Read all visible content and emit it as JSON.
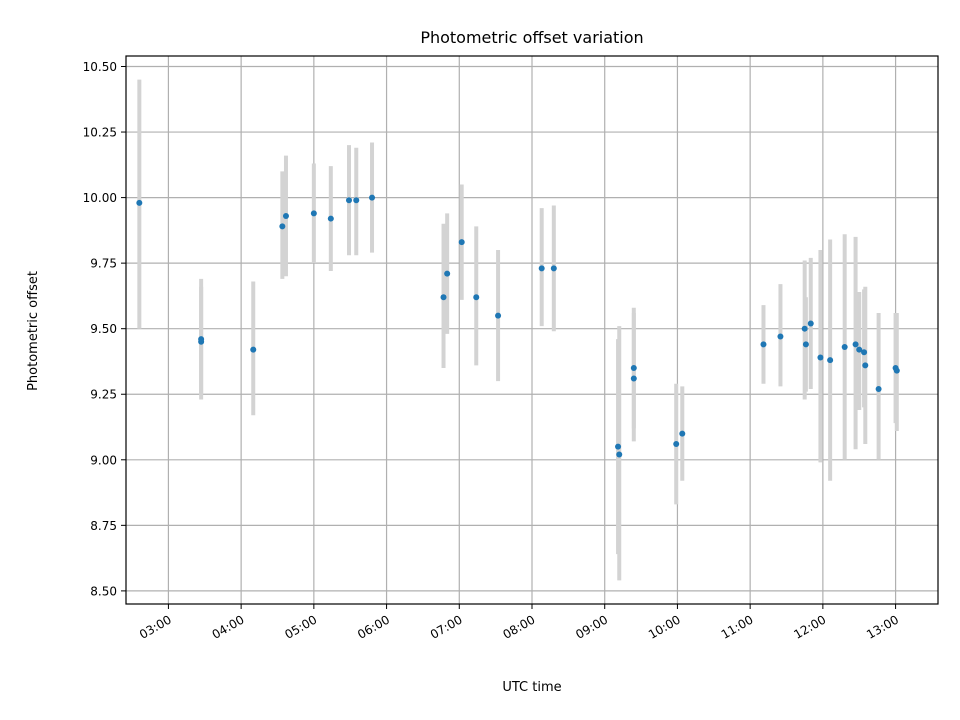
{
  "chart_data": {
    "type": "scatter",
    "title": "Photometric offset variation",
    "xlabel": "UTC time",
    "ylabel": "Photometric offset",
    "xlim": [
      "02:25",
      "13:35"
    ],
    "ylim": [
      8.45,
      10.54
    ],
    "grid": true,
    "legend": "none",
    "x_ticks": [
      "03:00",
      "04:00",
      "05:00",
      "06:00",
      "07:00",
      "08:00",
      "09:00",
      "10:00",
      "11:00",
      "12:00",
      "13:00"
    ],
    "y_ticks": [
      "8.50",
      "8.75",
      "9.00",
      "9.25",
      "9.50",
      "9.75",
      "10.00",
      "10.25",
      "10.50"
    ],
    "colors": {
      "point": "#1f77b4",
      "errorbar": "#d3d3d3",
      "grid": "#b0b0b0"
    },
    "points": [
      {
        "x": "02:36",
        "y": 9.98,
        "ylow": 9.5,
        "yhigh": 10.45
      },
      {
        "x": "03:27",
        "y": 9.46,
        "ylow": 9.23,
        "yhigh": 9.69
      },
      {
        "x": "03:27",
        "y": 9.45,
        "ylow": 9.25,
        "yhigh": 9.66
      },
      {
        "x": "04:10",
        "y": 9.42,
        "ylow": 9.17,
        "yhigh": 9.68
      },
      {
        "x": "04:34",
        "y": 9.89,
        "ylow": 9.69,
        "yhigh": 10.1
      },
      {
        "x": "04:37",
        "y": 9.93,
        "ylow": 9.7,
        "yhigh": 10.16
      },
      {
        "x": "05:00",
        "y": 9.94,
        "ylow": 9.75,
        "yhigh": 10.13
      },
      {
        "x": "05:14",
        "y": 9.92,
        "ylow": 9.72,
        "yhigh": 10.12
      },
      {
        "x": "05:29",
        "y": 9.99,
        "ylow": 9.78,
        "yhigh": 10.2
      },
      {
        "x": "05:35",
        "y": 9.99,
        "ylow": 9.78,
        "yhigh": 10.19
      },
      {
        "x": "05:48",
        "y": 10.0,
        "ylow": 9.79,
        "yhigh": 10.21
      },
      {
        "x": "06:47",
        "y": 9.62,
        "ylow": 9.35,
        "yhigh": 9.9
      },
      {
        "x": "06:50",
        "y": 9.71,
        "ylow": 9.48,
        "yhigh": 9.94
      },
      {
        "x": "07:02",
        "y": 9.83,
        "ylow": 9.61,
        "yhigh": 10.05
      },
      {
        "x": "07:14",
        "y": 9.62,
        "ylow": 9.36,
        "yhigh": 9.89
      },
      {
        "x": "07:32",
        "y": 9.55,
        "ylow": 9.3,
        "yhigh": 9.8
      },
      {
        "x": "08:08",
        "y": 9.73,
        "ylow": 9.51,
        "yhigh": 9.96
      },
      {
        "x": "08:18",
        "y": 9.73,
        "ylow": 9.49,
        "yhigh": 9.97
      },
      {
        "x": "09:11",
        "y": 9.05,
        "ylow": 8.64,
        "yhigh": 9.46
      },
      {
        "x": "09:12",
        "y": 9.02,
        "ylow": 8.54,
        "yhigh": 9.51
      },
      {
        "x": "09:24",
        "y": 9.35,
        "ylow": 9.12,
        "yhigh": 9.58
      },
      {
        "x": "09:24",
        "y": 9.31,
        "ylow": 9.07,
        "yhigh": 9.56
      },
      {
        "x": "09:59",
        "y": 9.06,
        "ylow": 8.83,
        "yhigh": 9.29
      },
      {
        "x": "10:04",
        "y": 9.1,
        "ylow": 8.92,
        "yhigh": 9.28
      },
      {
        "x": "11:11",
        "y": 9.44,
        "ylow": 9.29,
        "yhigh": 9.59
      },
      {
        "x": "11:25",
        "y": 9.47,
        "ylow": 9.28,
        "yhigh": 9.67
      },
      {
        "x": "11:45",
        "y": 9.5,
        "ylow": 9.23,
        "yhigh": 9.76
      },
      {
        "x": "11:46",
        "y": 9.44,
        "ylow": 9.26,
        "yhigh": 9.62
      },
      {
        "x": "11:50",
        "y": 9.52,
        "ylow": 9.27,
        "yhigh": 9.77
      },
      {
        "x": "11:58",
        "y": 9.39,
        "ylow": 8.99,
        "yhigh": 9.8
      },
      {
        "x": "12:06",
        "y": 9.38,
        "ylow": 8.92,
        "yhigh": 9.84
      },
      {
        "x": "12:18",
        "y": 9.43,
        "ylow": 9.0,
        "yhigh": 9.86
      },
      {
        "x": "12:27",
        "y": 9.44,
        "ylow": 9.04,
        "yhigh": 9.85
      },
      {
        "x": "12:30",
        "y": 9.42,
        "ylow": 9.19,
        "yhigh": 9.64
      },
      {
        "x": "12:34",
        "y": 9.41,
        "ylow": 9.2,
        "yhigh": 9.65
      },
      {
        "x": "12:35",
        "y": 9.36,
        "ylow": 9.06,
        "yhigh": 9.66
      },
      {
        "x": "12:46",
        "y": 9.27,
        "ylow": 9.0,
        "yhigh": 9.56
      },
      {
        "x": "13:00",
        "y": 9.35,
        "ylow": 9.14,
        "yhigh": 9.56
      },
      {
        "x": "13:01",
        "y": 9.34,
        "ylow": 9.11,
        "yhigh": 9.56
      }
    ]
  }
}
